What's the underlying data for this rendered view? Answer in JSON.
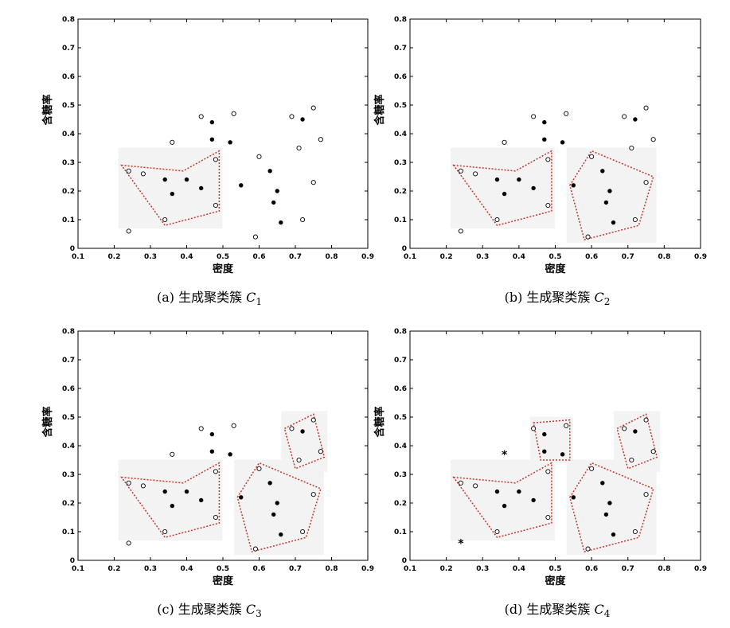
{
  "chart_data": [
    {
      "type": "scatter",
      "caption": "(a) 生成聚类簇 C1",
      "caption_prefix": "(a) 生成聚类簇 ",
      "caption_var": "C",
      "caption_sub": "1",
      "xlabel": "密度",
      "ylabel": "含糖率",
      "xlim": [
        0.1,
        0.9
      ],
      "ylim": [
        0,
        0.8
      ],
      "xticks": [
        "0.1",
        "0.2",
        "0.3",
        "0.4",
        "0.5",
        "0.6",
        "0.7",
        "0.8",
        "0.9"
      ],
      "yticks": [
        "0",
        "0.1",
        "0.2",
        "0.3",
        "0.4",
        "0.5",
        "0.6",
        "0.7",
        "0.8"
      ],
      "filled_points": [
        [
          0.34,
          0.24
        ],
        [
          0.36,
          0.19
        ],
        [
          0.4,
          0.24
        ],
        [
          0.44,
          0.21
        ],
        [
          0.47,
          0.44
        ],
        [
          0.47,
          0.38
        ],
        [
          0.52,
          0.37
        ],
        [
          0.55,
          0.22
        ],
        [
          0.63,
          0.27
        ],
        [
          0.65,
          0.2
        ],
        [
          0.64,
          0.16
        ],
        [
          0.66,
          0.09
        ],
        [
          0.72,
          0.45
        ]
      ],
      "open_points": [
        [
          0.24,
          0.27
        ],
        [
          0.28,
          0.26
        ],
        [
          0.24,
          0.06
        ],
        [
          0.34,
          0.1
        ],
        [
          0.36,
          0.37
        ],
        [
          0.44,
          0.46
        ],
        [
          0.48,
          0.31
        ],
        [
          0.48,
          0.15
        ],
        [
          0.53,
          0.47
        ],
        [
          0.6,
          0.32
        ],
        [
          0.59,
          0.04
        ],
        [
          0.69,
          0.46
        ],
        [
          0.71,
          0.35
        ],
        [
          0.72,
          0.1
        ],
        [
          0.75,
          0.49
        ],
        [
          0.75,
          0.23
        ],
        [
          0.77,
          0.38
        ]
      ],
      "noise_points": [],
      "clusters": [
        [
          [
            0.22,
            0.29
          ],
          [
            0.39,
            0.27
          ],
          [
            0.49,
            0.34
          ],
          [
            0.49,
            0.13
          ],
          [
            0.34,
            0.08
          ]
        ]
      ]
    },
    {
      "type": "scatter",
      "caption": "(b) 生成聚类簇 C2",
      "caption_prefix": "(b) 生成聚类簇 ",
      "caption_var": "C",
      "caption_sub": "2",
      "xlabel": "密度",
      "ylabel": "含糖率",
      "xlim": [
        0.1,
        0.9
      ],
      "ylim": [
        0,
        0.8
      ],
      "xticks": [
        "0.1",
        "0.2",
        "0.3",
        "0.4",
        "0.5",
        "0.6",
        "0.7",
        "0.8",
        "0.9"
      ],
      "yticks": [
        "0",
        "0.1",
        "0.2",
        "0.3",
        "0.4",
        "0.5",
        "0.6",
        "0.7",
        "0.8"
      ],
      "filled_points": [
        [
          0.34,
          0.24
        ],
        [
          0.36,
          0.19
        ],
        [
          0.4,
          0.24
        ],
        [
          0.44,
          0.21
        ],
        [
          0.47,
          0.44
        ],
        [
          0.47,
          0.38
        ],
        [
          0.52,
          0.37
        ],
        [
          0.55,
          0.22
        ],
        [
          0.63,
          0.27
        ],
        [
          0.65,
          0.2
        ],
        [
          0.64,
          0.16
        ],
        [
          0.66,
          0.09
        ],
        [
          0.72,
          0.45
        ]
      ],
      "open_points": [
        [
          0.24,
          0.27
        ],
        [
          0.28,
          0.26
        ],
        [
          0.24,
          0.06
        ],
        [
          0.34,
          0.1
        ],
        [
          0.36,
          0.37
        ],
        [
          0.44,
          0.46
        ],
        [
          0.48,
          0.31
        ],
        [
          0.48,
          0.15
        ],
        [
          0.53,
          0.47
        ],
        [
          0.6,
          0.32
        ],
        [
          0.59,
          0.04
        ],
        [
          0.69,
          0.46
        ],
        [
          0.71,
          0.35
        ],
        [
          0.72,
          0.1
        ],
        [
          0.75,
          0.49
        ],
        [
          0.75,
          0.23
        ],
        [
          0.77,
          0.38
        ]
      ],
      "noise_points": [],
      "clusters": [
        [
          [
            0.22,
            0.29
          ],
          [
            0.39,
            0.27
          ],
          [
            0.49,
            0.34
          ],
          [
            0.49,
            0.13
          ],
          [
            0.34,
            0.08
          ]
        ],
        [
          [
            0.54,
            0.22
          ],
          [
            0.6,
            0.34
          ],
          [
            0.77,
            0.25
          ],
          [
            0.73,
            0.08
          ],
          [
            0.58,
            0.03
          ]
        ]
      ]
    },
    {
      "type": "scatter",
      "caption": "(c) 生成聚类簇 C3",
      "caption_prefix": "(c) 生成聚类簇 ",
      "caption_var": "C",
      "caption_sub": "3",
      "xlabel": "密度",
      "ylabel": "含糖率",
      "xlim": [
        0.1,
        0.9
      ],
      "ylim": [
        0,
        0.8
      ],
      "xticks": [
        "0.1",
        "0.2",
        "0.3",
        "0.4",
        "0.5",
        "0.6",
        "0.7",
        "0.8",
        "0.9"
      ],
      "yticks": [
        "0",
        "0.1",
        "0.2",
        "0.3",
        "0.4",
        "0.5",
        "0.6",
        "0.7",
        "0.8"
      ],
      "filled_points": [
        [
          0.34,
          0.24
        ],
        [
          0.36,
          0.19
        ],
        [
          0.4,
          0.24
        ],
        [
          0.44,
          0.21
        ],
        [
          0.47,
          0.44
        ],
        [
          0.47,
          0.38
        ],
        [
          0.52,
          0.37
        ],
        [
          0.55,
          0.22
        ],
        [
          0.63,
          0.27
        ],
        [
          0.65,
          0.2
        ],
        [
          0.64,
          0.16
        ],
        [
          0.66,
          0.09
        ],
        [
          0.72,
          0.45
        ]
      ],
      "open_points": [
        [
          0.24,
          0.27
        ],
        [
          0.28,
          0.26
        ],
        [
          0.24,
          0.06
        ],
        [
          0.34,
          0.1
        ],
        [
          0.36,
          0.37
        ],
        [
          0.44,
          0.46
        ],
        [
          0.48,
          0.31
        ],
        [
          0.48,
          0.15
        ],
        [
          0.53,
          0.47
        ],
        [
          0.6,
          0.32
        ],
        [
          0.59,
          0.04
        ],
        [
          0.69,
          0.46
        ],
        [
          0.71,
          0.35
        ],
        [
          0.72,
          0.1
        ],
        [
          0.75,
          0.49
        ],
        [
          0.75,
          0.23
        ],
        [
          0.77,
          0.38
        ]
      ],
      "noise_points": [],
      "clusters": [
        [
          [
            0.22,
            0.29
          ],
          [
            0.39,
            0.27
          ],
          [
            0.49,
            0.34
          ],
          [
            0.49,
            0.13
          ],
          [
            0.34,
            0.08
          ]
        ],
        [
          [
            0.54,
            0.22
          ],
          [
            0.6,
            0.34
          ],
          [
            0.77,
            0.25
          ],
          [
            0.73,
            0.08
          ],
          [
            0.58,
            0.03
          ]
        ],
        [
          [
            0.67,
            0.46
          ],
          [
            0.75,
            0.51
          ],
          [
            0.78,
            0.36
          ],
          [
            0.7,
            0.32
          ]
        ]
      ]
    },
    {
      "type": "scatter",
      "caption": "(d) 生成聚类簇 C4",
      "caption_prefix": "(d) 生成聚类簇 ",
      "caption_var": "C",
      "caption_sub": "4",
      "xlabel": "密度",
      "ylabel": "含糖率",
      "xlim": [
        0.1,
        0.9
      ],
      "ylim": [
        0,
        0.8
      ],
      "xticks": [
        "0.1",
        "0.2",
        "0.3",
        "0.4",
        "0.5",
        "0.6",
        "0.7",
        "0.8",
        "0.9"
      ],
      "yticks": [
        "0",
        "0.1",
        "0.2",
        "0.3",
        "0.4",
        "0.5",
        "0.6",
        "0.7",
        "0.8"
      ],
      "filled_points": [
        [
          0.34,
          0.24
        ],
        [
          0.36,
          0.19
        ],
        [
          0.4,
          0.24
        ],
        [
          0.44,
          0.21
        ],
        [
          0.47,
          0.44
        ],
        [
          0.47,
          0.38
        ],
        [
          0.52,
          0.37
        ],
        [
          0.55,
          0.22
        ],
        [
          0.63,
          0.27
        ],
        [
          0.65,
          0.2
        ],
        [
          0.64,
          0.16
        ],
        [
          0.66,
          0.09
        ],
        [
          0.72,
          0.45
        ]
      ],
      "open_points": [
        [
          0.24,
          0.27
        ],
        [
          0.28,
          0.26
        ],
        [
          0.34,
          0.1
        ],
        [
          0.44,
          0.46
        ],
        [
          0.48,
          0.31
        ],
        [
          0.48,
          0.15
        ],
        [
          0.53,
          0.47
        ],
        [
          0.6,
          0.32
        ],
        [
          0.59,
          0.04
        ],
        [
          0.69,
          0.46
        ],
        [
          0.71,
          0.35
        ],
        [
          0.72,
          0.1
        ],
        [
          0.75,
          0.49
        ],
        [
          0.75,
          0.23
        ],
        [
          0.77,
          0.38
        ]
      ],
      "noise_points": [
        [
          0.36,
          0.37
        ],
        [
          0.24,
          0.06
        ]
      ],
      "clusters": [
        [
          [
            0.22,
            0.29
          ],
          [
            0.39,
            0.27
          ],
          [
            0.49,
            0.34
          ],
          [
            0.49,
            0.13
          ],
          [
            0.34,
            0.08
          ]
        ],
        [
          [
            0.54,
            0.22
          ],
          [
            0.6,
            0.34
          ],
          [
            0.77,
            0.25
          ],
          [
            0.73,
            0.08
          ],
          [
            0.58,
            0.03
          ]
        ],
        [
          [
            0.67,
            0.46
          ],
          [
            0.75,
            0.51
          ],
          [
            0.78,
            0.36
          ],
          [
            0.7,
            0.32
          ]
        ],
        [
          [
            0.44,
            0.48
          ],
          [
            0.54,
            0.49
          ],
          [
            0.54,
            0.35
          ],
          [
            0.46,
            0.35
          ]
        ]
      ]
    }
  ],
  "colors": {
    "cluster_border": "#c0392b",
    "cluster_fill": "#f3f3f3",
    "point": "#000000",
    "axis": "#000000"
  }
}
